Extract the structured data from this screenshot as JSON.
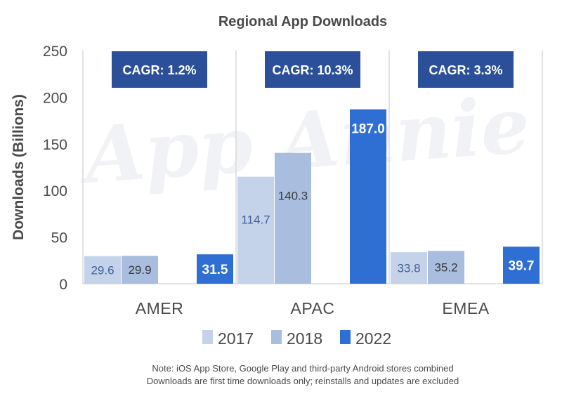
{
  "chart_data": {
    "type": "bar",
    "title": "Regional App Downloads",
    "ylabel": "Downloads (Billions)",
    "xlabel": "",
    "ylim": [
      0,
      250
    ],
    "yticks": [
      0,
      50,
      100,
      150,
      200,
      250
    ],
    "categories": [
      "AMER",
      "APAC",
      "EMEA"
    ],
    "series": [
      {
        "name": "2017",
        "values": [
          29.6,
          114.7,
          33.8
        ],
        "labels": [
          "29.6",
          "114.7",
          "33.8"
        ],
        "color": "#c5d3ea",
        "label_color": "#3f5f9a"
      },
      {
        "name": "2018",
        "values": [
          29.9,
          140.3,
          35.2
        ],
        "labels": [
          "29.9",
          "140.3",
          "35.2"
        ],
        "color": "#a9bede",
        "label_color": "#3a3a3a"
      },
      {
        "name": "2022",
        "values": [
          31.5,
          187.0,
          39.7
        ],
        "labels": [
          "31.5",
          "187.0",
          "39.7"
        ],
        "color": "#2f6fd4",
        "label_color": "#ffffff"
      }
    ],
    "annotations": [
      "CAGR: 1.2%",
      "CAGR: 10.3%",
      "CAGR: 3.3%"
    ],
    "annotation_color": "#2b4f98",
    "watermark": "App Annie",
    "grid": false,
    "legend_position": "bottom"
  },
  "notes": [
    "Note: iOS App Store, Google Play and third-party Android stores combined",
    "Downloads are first time downloads only; reinstalls and updates are excluded"
  ]
}
